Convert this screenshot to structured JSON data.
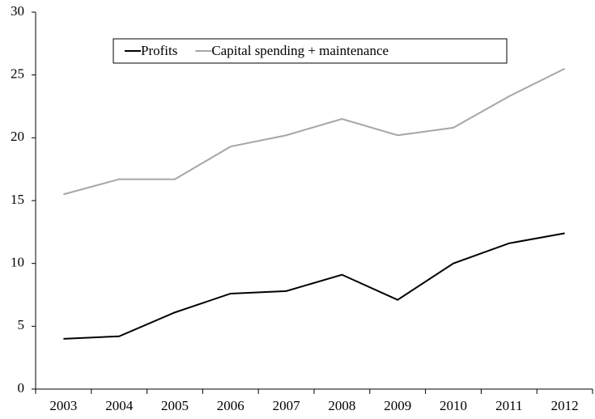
{
  "chart_data": {
    "type": "line",
    "categories": [
      "2003",
      "2004",
      "2005",
      "2006",
      "2007",
      "2008",
      "2009",
      "2010",
      "2011",
      "2012"
    ],
    "series": [
      {
        "name": "Profits",
        "color": "#000000",
        "values": [
          4.0,
          4.2,
          6.1,
          7.6,
          7.8,
          9.1,
          7.1,
          10.0,
          11.6,
          12.4
        ]
      },
      {
        "name": "Capital spending + maintenance",
        "color": "#a6a6a6",
        "values": [
          15.5,
          16.7,
          16.7,
          19.3,
          20.2,
          21.5,
          20.2,
          20.8,
          23.3,
          25.5
        ]
      }
    ],
    "ylim": [
      0,
      30
    ],
    "yticks": [
      0,
      5,
      10,
      15,
      20,
      25,
      30
    ],
    "grid": false,
    "legend": "top"
  }
}
